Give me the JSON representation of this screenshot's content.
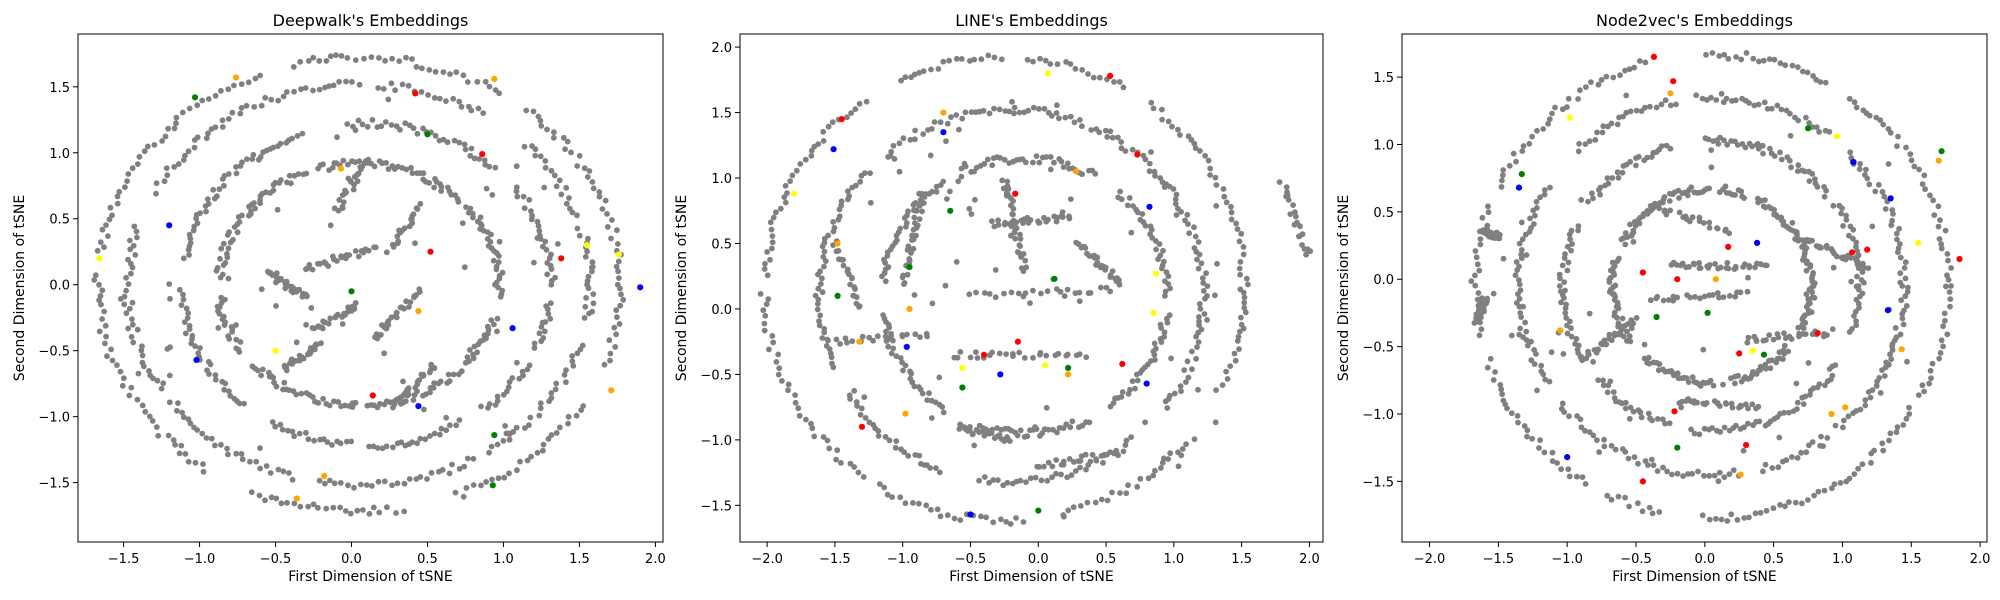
{
  "chart_data": [
    {
      "type": "scatter",
      "title": "Deepwalk's Embeddings",
      "xlabel": "First Dimension of tSNE",
      "ylabel": "Second Dimension of tSNE",
      "xlim": [
        -1.8,
        2.05
      ],
      "ylim": [
        -1.95,
        1.9
      ],
      "xticks": [
        -1.5,
        -1.0,
        -0.5,
        0.0,
        0.5,
        1.0,
        1.5,
        2.0
      ],
      "xtick_labels": [
        "−1.5",
        "−1.0",
        "−0.5",
        "0.0",
        "0.5",
        "1.0",
        "1.5",
        "2.0"
      ],
      "yticks": [
        -1.5,
        -1.0,
        -0.5,
        0.0,
        0.5,
        1.0,
        1.5
      ],
      "ytick_labels": [
        "−1.5",
        "−1.0",
        "−0.5",
        "0.0",
        "0.5",
        "1.0",
        "1.5"
      ],
      "grid": false,
      "legend": "none",
      "background_color": "#808080",
      "rings": [
        [
          0.05,
          0.0,
          1.72
        ],
        [
          0.05,
          0.0,
          1.52
        ],
        [
          0.1,
          0.0,
          1.22
        ],
        [
          0.05,
          0.0,
          0.92
        ]
      ],
      "segments": [
        [
          -0.3,
          0.12,
          0.15,
          0.28
        ],
        [
          -0.55,
          0.1,
          -0.3,
          -0.1
        ],
        [
          -0.25,
          -0.35,
          0.05,
          -0.15
        ],
        [
          0.15,
          -0.4,
          0.45,
          -0.05
        ],
        [
          -0.45,
          -0.65,
          -0.2,
          -0.45
        ],
        [
          0.3,
          -0.9,
          0.55,
          -0.6
        ],
        [
          -0.1,
          0.55,
          0.1,
          0.95
        ],
        [
          0.25,
          0.25,
          0.45,
          0.6
        ]
      ],
      "series": [
        {
          "color": "#ff0000",
          "points": [
            [
              0.42,
              1.45
            ],
            [
              0.86,
              0.99
            ],
            [
              1.38,
              0.2
            ],
            [
              0.14,
              -0.84
            ],
            [
              0.52,
              0.25
            ]
          ]
        },
        {
          "color": "#ffa500",
          "points": [
            [
              0.94,
              1.56
            ],
            [
              -0.76,
              1.57
            ],
            [
              -0.07,
              0.88
            ],
            [
              1.71,
              -0.8
            ],
            [
              -0.36,
              -1.62
            ],
            [
              -0.18,
              -1.45
            ],
            [
              0.44,
              -0.2
            ]
          ]
        },
        {
          "color": "#ffff00",
          "points": [
            [
              1.55,
              0.3
            ],
            [
              1.76,
              0.23
            ],
            [
              -1.66,
              0.2
            ],
            [
              -0.5,
              -0.5
            ]
          ]
        },
        {
          "color": "#0000ff",
          "points": [
            [
              1.9,
              -0.02
            ],
            [
              1.06,
              -0.33
            ],
            [
              -1.02,
              -0.57
            ],
            [
              0.44,
              -0.92
            ],
            [
              -1.2,
              0.45
            ]
          ]
        },
        {
          "color": "#008000",
          "points": [
            [
              -1.03,
              1.42
            ],
            [
              0.5,
              1.14
            ],
            [
              0.94,
              -1.14
            ],
            [
              0.93,
              -1.52
            ],
            [
              0.0,
              -0.05
            ]
          ]
        }
      ]
    },
    {
      "type": "scatter",
      "title": "LINE's Embeddings",
      "xlabel": "First Dimension of tSNE",
      "ylabel": "Second Dimension of tSNE",
      "xlim": [
        -2.2,
        2.1
      ],
      "ylim": [
        -1.78,
        2.1
      ],
      "xticks": [
        -2.0,
        -1.5,
        -1.0,
        -0.5,
        0.0,
        0.5,
        1.0,
        1.5,
        2.0
      ],
      "xtick_labels": [
        "−2.0",
        "−1.5",
        "−1.0",
        "−0.5",
        "0.0",
        "0.5",
        "1.0",
        "1.5",
        "2.0"
      ],
      "yticks": [
        -1.5,
        -1.0,
        -0.5,
        0.0,
        0.5,
        1.0,
        1.5,
        2.0
      ],
      "ytick_labels": [
        "−1.5",
        "−1.0",
        "−0.5",
        "0.0",
        "0.5",
        "1.0",
        "1.5",
        "2.0"
      ],
      "grid": false,
      "legend": "none",
      "background_color": "#808080",
      "rings": [
        [
          -0.25,
          0.15,
          1.77
        ],
        [
          -0.2,
          0.1,
          1.42
        ],
        [
          -0.1,
          0.1,
          1.05
        ]
      ],
      "segments": [
        [
          -1.55,
          -0.25,
          -0.8,
          -0.2
        ],
        [
          -0.6,
          -0.35,
          0.35,
          -0.35
        ],
        [
          -0.5,
          0.1,
          0.55,
          0.15
        ],
        [
          -0.35,
          0.65,
          0.25,
          0.7
        ],
        [
          -1.0,
          0.2,
          -0.85,
          0.9
        ],
        [
          -0.6,
          -0.9,
          -0.2,
          -1.0
        ],
        [
          0.0,
          -1.2,
          0.6,
          -1.1
        ],
        [
          0.3,
          0.5,
          0.6,
          0.2
        ],
        [
          -0.25,
          1.0,
          -0.1,
          0.3
        ],
        [
          1.8,
          0.95,
          2.0,
          0.4
        ],
        [
          -1.5,
          0.5,
          -1.3,
          0.0
        ]
      ],
      "series": [
        {
          "color": "#ff0000",
          "points": [
            [
              -1.45,
              1.45
            ],
            [
              0.53,
              1.78
            ],
            [
              0.73,
              1.18
            ],
            [
              -0.17,
              0.88
            ],
            [
              0.62,
              -0.42
            ],
            [
              -0.15,
              -0.25
            ],
            [
              -0.4,
              -0.35
            ],
            [
              -1.3,
              -0.9
            ]
          ]
        },
        {
          "color": "#ffa500",
          "points": [
            [
              -0.7,
              1.5
            ],
            [
              -1.48,
              0.5
            ],
            [
              -1.32,
              -0.25
            ],
            [
              -0.98,
              -0.8
            ],
            [
              -0.95,
              0.0
            ],
            [
              0.28,
              1.05
            ],
            [
              0.22,
              -0.5
            ]
          ]
        },
        {
          "color": "#ffff00",
          "points": [
            [
              -1.8,
              0.88
            ],
            [
              0.07,
              1.8
            ],
            [
              0.87,
              0.27
            ],
            [
              0.85,
              -0.03
            ],
            [
              -0.56,
              -0.45
            ],
            [
              0.05,
              -0.43
            ]
          ]
        },
        {
          "color": "#0000ff",
          "points": [
            [
              -1.51,
              1.22
            ],
            [
              -0.7,
              1.35
            ],
            [
              0.82,
              0.78
            ],
            [
              -0.97,
              -0.29
            ],
            [
              -0.28,
              -0.5
            ],
            [
              0.8,
              -0.57
            ],
            [
              -0.5,
              -1.57
            ]
          ]
        },
        {
          "color": "#008000",
          "points": [
            [
              -0.56,
              -0.6
            ],
            [
              0.22,
              -0.45
            ],
            [
              -1.48,
              0.1
            ],
            [
              0.12,
              0.23
            ],
            [
              0.0,
              -1.54
            ],
            [
              -0.65,
              0.75
            ],
            [
              -0.95,
              0.32
            ]
          ]
        }
      ]
    },
    {
      "type": "scatter",
      "title": "Node2vec's Embeddings",
      "xlabel": "First Dimension of tSNE",
      "ylabel": "Second Dimension of tSNE",
      "xlim": [
        -2.2,
        2.05
      ],
      "ylim": [
        -1.95,
        1.82
      ],
      "xticks": [
        -2.0,
        -1.5,
        -1.0,
        -0.5,
        0.0,
        0.5,
        1.0,
        1.5,
        2.0
      ],
      "xtick_labels": [
        "−2.0",
        "−1.5",
        "−1.0",
        "−0.5",
        "0.0",
        "0.5",
        "1.0",
        "1.5",
        "2.0"
      ],
      "yticks": [
        -1.5,
        -1.0,
        -0.5,
        0.0,
        0.5,
        1.0,
        1.5
      ],
      "ytick_labels": [
        "−1.5",
        "−1.0",
        "−0.5",
        "0.0",
        "0.5",
        "1.0",
        "1.5"
      ],
      "grid": false,
      "legend": "none",
      "background_color": "#808080",
      "rings": [
        [
          0.05,
          -0.05,
          1.72
        ],
        [
          0.05,
          -0.05,
          1.4
        ],
        [
          0.05,
          -0.05,
          1.08
        ],
        [
          0.05,
          -0.05,
          0.72
        ]
      ],
      "segments": [
        [
          -0.25,
          0.1,
          0.45,
          0.1
        ],
        [
          -0.4,
          -0.15,
          0.3,
          -0.1
        ],
        [
          -0.4,
          0.55,
          0.2,
          0.35
        ],
        [
          0.3,
          -0.45,
          0.9,
          -0.4
        ],
        [
          0.7,
          0.3,
          1.2,
          0.1
        ],
        [
          -0.9,
          -0.6,
          -0.5,
          -0.3
        ],
        [
          -0.2,
          -0.9,
          0.4,
          -0.95
        ],
        [
          -1.6,
          0.35,
          -1.5,
          0.32
        ],
        [
          -1.65,
          -0.3,
          -1.6,
          -0.15
        ]
      ],
      "series": [
        {
          "color": "#ff0000",
          "points": [
            [
              -0.37,
              1.65
            ],
            [
              -0.23,
              1.47
            ],
            [
              0.17,
              0.24
            ],
            [
              -0.45,
              0.05
            ],
            [
              -0.2,
              0.0
            ],
            [
              1.07,
              0.2
            ],
            [
              1.18,
              0.22
            ],
            [
              0.25,
              -0.55
            ],
            [
              1.85,
              0.15
            ],
            [
              0.82,
              -0.4
            ],
            [
              -0.22,
              -0.98
            ],
            [
              -0.45,
              -1.5
            ],
            [
              0.3,
              -1.23
            ]
          ]
        },
        {
          "color": "#ffa500",
          "points": [
            [
              -0.25,
              1.38
            ],
            [
              1.7,
              0.88
            ],
            [
              -1.05,
              -0.38
            ],
            [
              0.08,
              0.0
            ],
            [
              1.43,
              -0.52
            ],
            [
              0.92,
              -1.0
            ],
            [
              0.26,
              -1.45
            ],
            [
              1.02,
              -0.95
            ]
          ]
        },
        {
          "color": "#ffff00",
          "points": [
            [
              -0.98,
              1.2
            ],
            [
              0.96,
              1.06
            ],
            [
              1.55,
              0.27
            ],
            [
              0.35,
              -0.53
            ]
          ]
        },
        {
          "color": "#0000ff",
          "points": [
            [
              -1.35,
              0.68
            ],
            [
              1.08,
              0.87
            ],
            [
              1.35,
              0.6
            ],
            [
              1.33,
              -0.23
            ],
            [
              -1.0,
              -1.32
            ],
            [
              0.38,
              0.27
            ]
          ]
        },
        {
          "color": "#008000",
          "points": [
            [
              -1.33,
              0.78
            ],
            [
              0.75,
              1.12
            ],
            [
              1.72,
              0.95
            ],
            [
              0.02,
              -0.25
            ],
            [
              -0.35,
              -0.28
            ],
            [
              -0.2,
              -1.25
            ],
            [
              0.43,
              -0.56
            ]
          ]
        }
      ]
    }
  ]
}
